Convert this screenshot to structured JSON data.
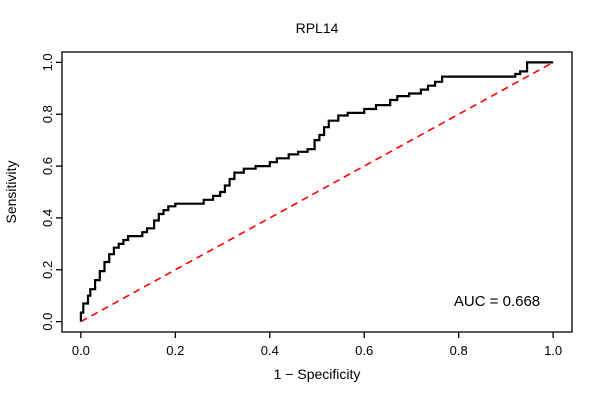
{
  "chart": {
    "title": "RPL14",
    "xlabel": "1 − Specificity",
    "ylabel": "Sensitivity",
    "auc_label": "AUC = 0.668"
  },
  "chart_data": {
    "type": "line",
    "subtype": "roc-curve",
    "title": "RPL14",
    "xlabel": "1 − Specificity",
    "ylabel": "Sensitivity",
    "xlim": [
      0,
      1
    ],
    "ylim": [
      0,
      1
    ],
    "grid": false,
    "x_ticks": [
      0.0,
      0.2,
      0.4,
      0.6,
      0.8,
      1.0
    ],
    "y_ticks": [
      0.0,
      0.2,
      0.4,
      0.6,
      0.8,
      1.0
    ],
    "auc": 0.668,
    "annotation": "AUC = 0.668",
    "annotation_position": [
      0.87,
      0.08
    ],
    "colors": {
      "roc": "#000000",
      "reference": "#ff0000"
    },
    "series": [
      {
        "name": "ROC curve",
        "color": "#000000",
        "style": "solid",
        "line_width": 2.2,
        "points": [
          [
            0.0,
            0.0
          ],
          [
            0.0,
            0.035
          ],
          [
            0.005,
            0.035
          ],
          [
            0.005,
            0.07
          ],
          [
            0.015,
            0.07
          ],
          [
            0.015,
            0.1
          ],
          [
            0.02,
            0.1
          ],
          [
            0.02,
            0.125
          ],
          [
            0.03,
            0.125
          ],
          [
            0.03,
            0.16
          ],
          [
            0.04,
            0.16
          ],
          [
            0.04,
            0.195
          ],
          [
            0.05,
            0.195
          ],
          [
            0.05,
            0.23
          ],
          [
            0.06,
            0.23
          ],
          [
            0.06,
            0.26
          ],
          [
            0.07,
            0.26
          ],
          [
            0.07,
            0.285
          ],
          [
            0.08,
            0.285
          ],
          [
            0.08,
            0.3
          ],
          [
            0.09,
            0.3
          ],
          [
            0.09,
            0.315
          ],
          [
            0.1,
            0.315
          ],
          [
            0.1,
            0.33
          ],
          [
            0.13,
            0.33
          ],
          [
            0.13,
            0.345
          ],
          [
            0.14,
            0.345
          ],
          [
            0.14,
            0.36
          ],
          [
            0.155,
            0.36
          ],
          [
            0.155,
            0.39
          ],
          [
            0.165,
            0.39
          ],
          [
            0.165,
            0.415
          ],
          [
            0.175,
            0.415
          ],
          [
            0.175,
            0.43
          ],
          [
            0.185,
            0.43
          ],
          [
            0.185,
            0.445
          ],
          [
            0.2,
            0.445
          ],
          [
            0.2,
            0.455
          ],
          [
            0.26,
            0.455
          ],
          [
            0.26,
            0.47
          ],
          [
            0.28,
            0.47
          ],
          [
            0.28,
            0.485
          ],
          [
            0.295,
            0.485
          ],
          [
            0.295,
            0.5
          ],
          [
            0.305,
            0.5
          ],
          [
            0.305,
            0.525
          ],
          [
            0.315,
            0.525
          ],
          [
            0.315,
            0.55
          ],
          [
            0.325,
            0.55
          ],
          [
            0.325,
            0.575
          ],
          [
            0.345,
            0.575
          ],
          [
            0.345,
            0.59
          ],
          [
            0.37,
            0.59
          ],
          [
            0.37,
            0.6
          ],
          [
            0.4,
            0.6
          ],
          [
            0.4,
            0.615
          ],
          [
            0.415,
            0.615
          ],
          [
            0.415,
            0.63
          ],
          [
            0.44,
            0.63
          ],
          [
            0.44,
            0.645
          ],
          [
            0.46,
            0.645
          ],
          [
            0.46,
            0.655
          ],
          [
            0.48,
            0.655
          ],
          [
            0.48,
            0.665
          ],
          [
            0.495,
            0.665
          ],
          [
            0.495,
            0.7
          ],
          [
            0.505,
            0.7
          ],
          [
            0.505,
            0.72
          ],
          [
            0.515,
            0.72
          ],
          [
            0.515,
            0.75
          ],
          [
            0.525,
            0.75
          ],
          [
            0.525,
            0.775
          ],
          [
            0.545,
            0.775
          ],
          [
            0.545,
            0.795
          ],
          [
            0.565,
            0.795
          ],
          [
            0.565,
            0.805
          ],
          [
            0.6,
            0.805
          ],
          [
            0.6,
            0.82
          ],
          [
            0.625,
            0.82
          ],
          [
            0.625,
            0.835
          ],
          [
            0.655,
            0.835
          ],
          [
            0.655,
            0.855
          ],
          [
            0.67,
            0.855
          ],
          [
            0.67,
            0.87
          ],
          [
            0.695,
            0.87
          ],
          [
            0.695,
            0.88
          ],
          [
            0.72,
            0.88
          ],
          [
            0.72,
            0.895
          ],
          [
            0.735,
            0.895
          ],
          [
            0.735,
            0.91
          ],
          [
            0.75,
            0.91
          ],
          [
            0.75,
            0.925
          ],
          [
            0.765,
            0.925
          ],
          [
            0.765,
            0.945
          ],
          [
            0.78,
            0.945
          ],
          [
            0.92,
            0.945
          ],
          [
            0.92,
            0.955
          ],
          [
            0.93,
            0.955
          ],
          [
            0.93,
            0.965
          ],
          [
            0.945,
            0.965
          ],
          [
            0.945,
            1.0
          ],
          [
            1.0,
            1.0
          ]
        ]
      },
      {
        "name": "Reference diagonal",
        "color": "#ff0000",
        "style": "dashed",
        "line_width": 1.6,
        "points": [
          [
            0,
            0
          ],
          [
            1,
            1
          ]
        ]
      }
    ]
  }
}
